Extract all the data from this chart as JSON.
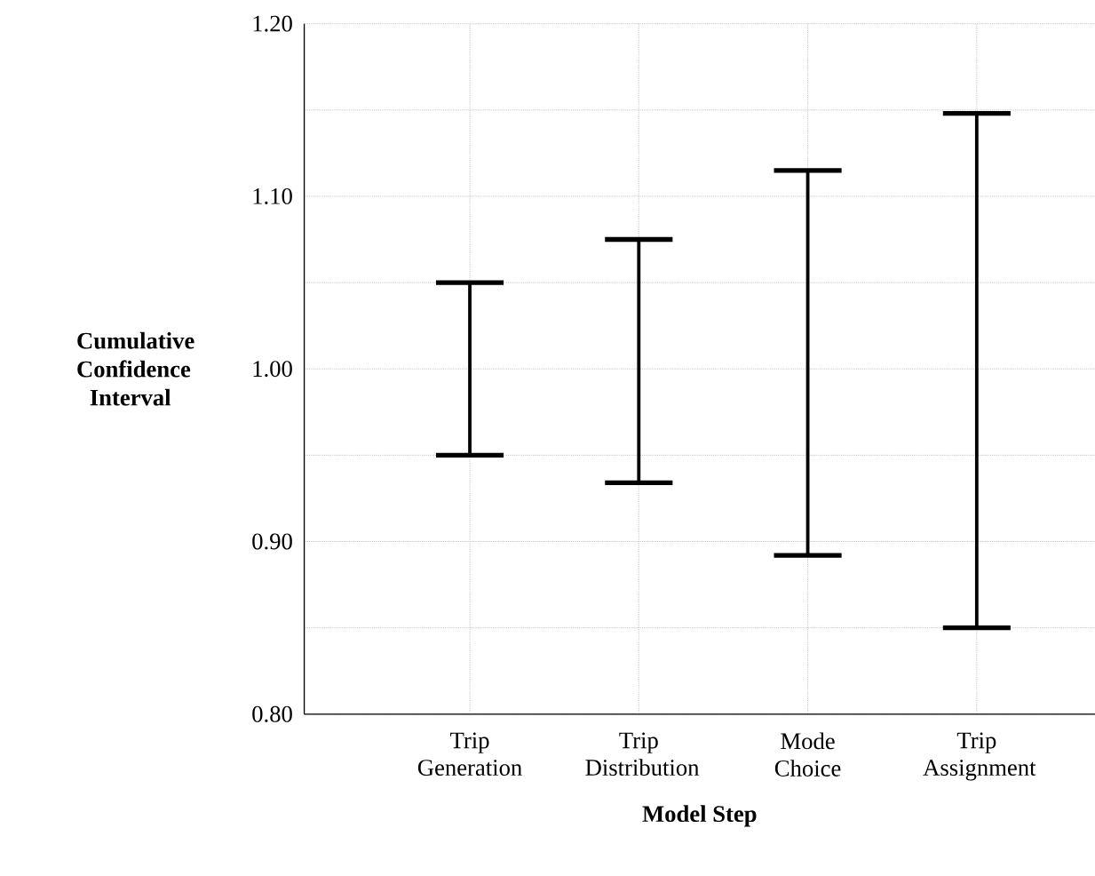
{
  "chart_data": {
    "type": "bar",
    "xlabel": "Model Step",
    "ylabel": "Cumulative Confidence Interval",
    "categories": [
      "Trip Generation",
      "Trip Distribution",
      "Mode Choice",
      "Trip Assignment"
    ],
    "base": [
      0.95,
      0.934,
      0.892,
      0.85
    ],
    "values": [
      0.1,
      0.141,
      0.223,
      0.298
    ],
    "color": "#000000",
    "ylim": [
      0.8,
      1.2
    ],
    "yticks": [
      {
        "value": 0.8,
        "label": "0.80"
      },
      {
        "value": 0.85,
        "label": null
      },
      {
        "value": 0.9,
        "label": "0.90"
      },
      {
        "value": 0.95,
        "label": null
      },
      {
        "value": 1.0,
        "label": "1.00"
      },
      {
        "value": 1.05,
        "label": null
      },
      {
        "value": 1.1,
        "label": "1.10"
      },
      {
        "value": 1.15,
        "label": null
      },
      {
        "value": 1.2,
        "label": "1.20"
      }
    ],
    "grid": true
  }
}
